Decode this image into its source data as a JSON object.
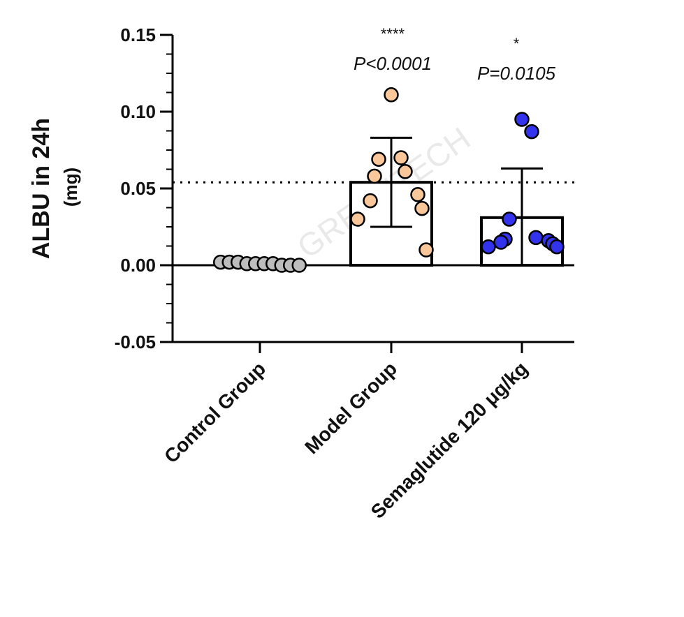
{
  "chart_data": {
    "type": "bar",
    "ylabel": "ALBU in 24h",
    "ylabel_unit": "(mg)",
    "xlabel": "",
    "ylim": [
      -0.05,
      0.15
    ],
    "yticks": [
      -0.05,
      0.0,
      0.05,
      0.1,
      0.15
    ],
    "ytick_labels": [
      "-0.05",
      "0.00",
      "0.05",
      "0.10",
      "0.15"
    ],
    "reference_line": 0.054,
    "categories": [
      "Control Group",
      "Model Group",
      "Semaglutide 120 μg/kg"
    ],
    "series": [
      {
        "values": [
          0.0,
          0.054,
          0.031
        ],
        "error": [
          0.0015,
          0.029,
          0.032
        ],
        "points": [
          [
            0.002,
            0.001,
            0.0,
            0.002,
            0.001,
            0.0,
            0.001,
            0.002,
            0.0,
            0.001
          ],
          [
            0.111,
            0.07,
            0.069,
            0.061,
            0.058,
            0.046,
            0.042,
            0.037,
            0.03,
            0.01
          ],
          [
            0.095,
            0.087,
            0.03,
            0.018,
            0.017,
            0.016,
            0.015,
            0.014,
            0.012,
            0.012
          ]
        ]
      }
    ],
    "annotations": [
      {
        "category": "Model Group",
        "stars": "****",
        "p": "P<0.0001"
      },
      {
        "category": "Semaglutide 120 μg/kg",
        "stars": "*",
        "p": "P=0.0105"
      }
    ],
    "colors": {
      "point_fills": [
        "#bdbdbd",
        "#f9c79a",
        "#3333ee"
      ],
      "bar_fill": "#ffffff",
      "stroke": "#000000"
    },
    "grid": false,
    "legend": "none"
  },
  "watermark": "GREENTECH"
}
